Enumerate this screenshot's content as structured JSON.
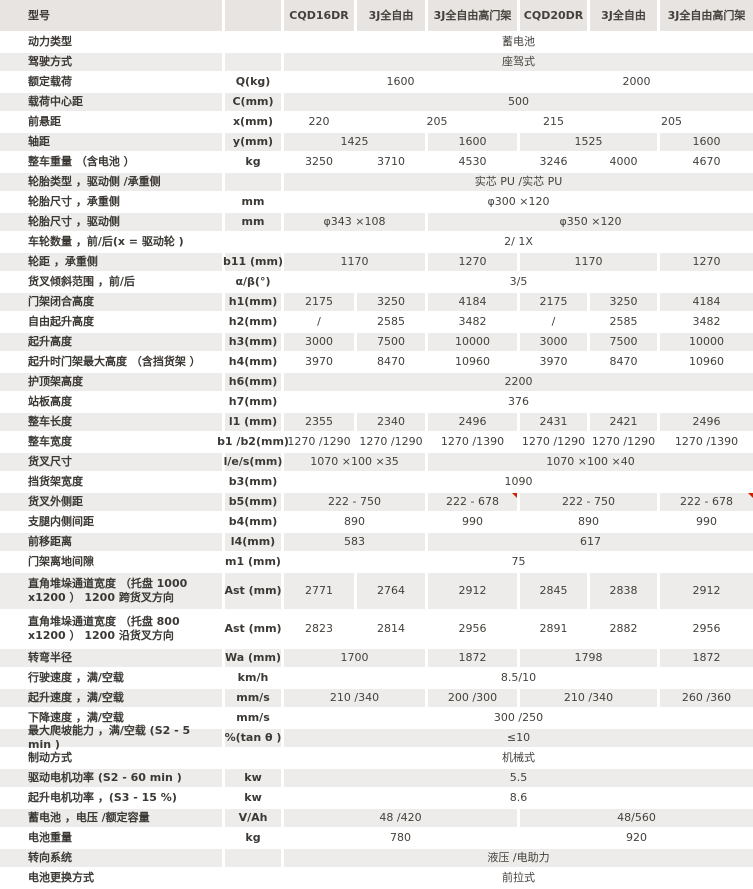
{
  "table": {
    "header": {
      "label": "型号",
      "unit": "",
      "models": [
        "CQD16DR",
        "3J全自由",
        "3J全自由高门架",
        "CQD20DR",
        "3J全自由",
        "3J全自由高门架"
      ]
    },
    "rows": [
      {
        "label": "动力类型",
        "unit": "",
        "cells": [
          {
            "span": 6,
            "text": "蓄电池"
          }
        ]
      },
      {
        "label": "驾驶方式",
        "unit": "",
        "cells": [
          {
            "span": 6,
            "text": "座驾式"
          }
        ]
      },
      {
        "label": "额定载荷",
        "unit": "Q(kg)",
        "cells": [
          {
            "span": 3,
            "text": "1600"
          },
          {
            "span": 3,
            "text": "2000"
          }
        ]
      },
      {
        "label": "载荷中心距",
        "unit": "C(mm)",
        "cells": [
          {
            "span": 6,
            "text": "500"
          }
        ]
      },
      {
        "label": "前悬距",
        "unit": "x(mm)",
        "cells": [
          {
            "span": 1,
            "text": "220"
          },
          {
            "span": 2,
            "text": "205"
          },
          {
            "span": 1,
            "text": "215"
          },
          {
            "span": 2,
            "text": "205"
          }
        ]
      },
      {
        "label": "轴距",
        "unit": "y(mm)",
        "cells": [
          {
            "span": 2,
            "text": "1425"
          },
          {
            "span": 1,
            "text": "1600"
          },
          {
            "span": 2,
            "text": "1525"
          },
          {
            "span": 1,
            "text": "1600"
          }
        ]
      },
      {
        "label": "整车重量 （含电池 ）",
        "unit": "kg",
        "cells": [
          {
            "span": 1,
            "text": "3250"
          },
          {
            "span": 1,
            "text": "3710"
          },
          {
            "span": 1,
            "text": "4530"
          },
          {
            "span": 1,
            "text": "3246"
          },
          {
            "span": 1,
            "text": "4000"
          },
          {
            "span": 1,
            "text": "4670"
          }
        ]
      },
      {
        "label": "轮胎类型 ，驱动侧 /承重侧",
        "unit": "",
        "cells": [
          {
            "span": 6,
            "text": "实芯 PU /实芯 PU"
          }
        ]
      },
      {
        "label": "轮胎尺寸 ，承重侧",
        "unit": "mm",
        "cells": [
          {
            "span": 6,
            "text": "φ300 ×120"
          }
        ]
      },
      {
        "label": "轮胎尺寸 ，驱动侧",
        "unit": "mm",
        "cells": [
          {
            "span": 2,
            "text": "φ343 ×108"
          },
          {
            "span": 4,
            "text": "φ350 ×120"
          }
        ]
      },
      {
        "label": "车轮数量 ，前/后(x = 驱动轮 )",
        "unit": "",
        "cells": [
          {
            "span": 6,
            "text": "2/ 1X"
          }
        ]
      },
      {
        "label": "轮距 ，承重侧",
        "unit": "b11 (mm)",
        "cells": [
          {
            "span": 2,
            "text": "1170"
          },
          {
            "span": 1,
            "text": "1270"
          },
          {
            "span": 2,
            "text": "1170"
          },
          {
            "span": 1,
            "text": "1270"
          }
        ]
      },
      {
        "label": "货叉倾斜范围 ，前/后",
        "unit": "α/β(°)",
        "cells": [
          {
            "span": 6,
            "text": "3/5"
          }
        ]
      },
      {
        "label": "门架闭合高度",
        "unit": "h1(mm)",
        "cells": [
          {
            "span": 1,
            "text": "2175"
          },
          {
            "span": 1,
            "text": "3250"
          },
          {
            "span": 1,
            "text": "4184"
          },
          {
            "span": 1,
            "text": "2175"
          },
          {
            "span": 1,
            "text": "3250"
          },
          {
            "span": 1,
            "text": "4184"
          }
        ]
      },
      {
        "label": "自由起升高度",
        "unit": "h2(mm)",
        "cells": [
          {
            "span": 1,
            "text": "/"
          },
          {
            "span": 1,
            "text": "2585"
          },
          {
            "span": 1,
            "text": "3482"
          },
          {
            "span": 1,
            "text": "/"
          },
          {
            "span": 1,
            "text": "2585"
          },
          {
            "span": 1,
            "text": "3482"
          }
        ]
      },
      {
        "label": "起升高度",
        "unit": "h3(mm)",
        "cells": [
          {
            "span": 1,
            "text": "3000"
          },
          {
            "span": 1,
            "text": "7500"
          },
          {
            "span": 1,
            "text": "10000"
          },
          {
            "span": 1,
            "text": "3000"
          },
          {
            "span": 1,
            "text": "7500"
          },
          {
            "span": 1,
            "text": "10000"
          }
        ]
      },
      {
        "label": "起升时门架最大高度 （含挡货架 ）",
        "unit": "h4(mm)",
        "cells": [
          {
            "span": 1,
            "text": "3970"
          },
          {
            "span": 1,
            "text": "8470"
          },
          {
            "span": 1,
            "text": "10960"
          },
          {
            "span": 1,
            "text": "3970"
          },
          {
            "span": 1,
            "text": "8470"
          },
          {
            "span": 1,
            "text": "10960"
          }
        ]
      },
      {
        "label": "护顶架高度",
        "unit": "h6(mm)",
        "cells": [
          {
            "span": 6,
            "text": "2200"
          }
        ]
      },
      {
        "label": "站板高度",
        "unit": "h7(mm)",
        "cells": [
          {
            "span": 6,
            "text": "376"
          }
        ]
      },
      {
        "label": "整车长度",
        "unit": "l1 (mm)",
        "cells": [
          {
            "span": 1,
            "text": "2355"
          },
          {
            "span": 1,
            "text": "2340"
          },
          {
            "span": 1,
            "text": "2496"
          },
          {
            "span": 1,
            "text": "2431"
          },
          {
            "span": 1,
            "text": "2421"
          },
          {
            "span": 1,
            "text": "2496"
          }
        ]
      },
      {
        "label": "整车宽度",
        "unit": "b1 /b2(mm)",
        "cells": [
          {
            "span": 1,
            "text": "1270 /1290"
          },
          {
            "span": 1,
            "text": "1270 /1290"
          },
          {
            "span": 1,
            "text": "1270 /1390"
          },
          {
            "span": 1,
            "text": "1270 /1290"
          },
          {
            "span": 1,
            "text": "1270 /1290"
          },
          {
            "span": 1,
            "text": "1270 /1390"
          }
        ]
      },
      {
        "label": "货叉尺寸",
        "unit": "l/e/s(mm)",
        "cells": [
          {
            "span": 2,
            "text": "1070 ×100 ×35"
          },
          {
            "span": 4,
            "text": "1070 ×100 ×40"
          }
        ]
      },
      {
        "label": "挡货架宽度",
        "unit": "b3(mm)",
        "cells": [
          {
            "span": 6,
            "text": "1090"
          }
        ]
      },
      {
        "label": "货叉外侧距",
        "unit": "b5(mm)",
        "cells": [
          {
            "span": 2,
            "text": "222 - 750"
          },
          {
            "span": 1,
            "text": "222 - 678",
            "marker": true
          },
          {
            "span": 2,
            "text": "222 - 750"
          },
          {
            "span": 1,
            "text": "222 - 678",
            "marker": true
          }
        ]
      },
      {
        "label": "支腿内侧间距",
        "unit": "b4(mm)",
        "cells": [
          {
            "span": 2,
            "text": "890"
          },
          {
            "span": 1,
            "text": "990"
          },
          {
            "span": 2,
            "text": "890"
          },
          {
            "span": 1,
            "text": "990"
          }
        ]
      },
      {
        "label": "前移距离",
        "unit": "l4(mm)",
        "cells": [
          {
            "span": 2,
            "text": "583"
          },
          {
            "span": 4,
            "text": "617"
          }
        ]
      },
      {
        "label": "门架离地间隙",
        "unit": "m1 (mm)",
        "cells": [
          {
            "span": 6,
            "text": "75"
          }
        ]
      },
      {
        "label": "直角堆垛通道宽度 （托盘 1000 x1200 ） 1200 跨货叉方向",
        "unit": "Ast (mm)",
        "tall": true,
        "cells": [
          {
            "span": 1,
            "text": "2771"
          },
          {
            "span": 1,
            "text": "2764"
          },
          {
            "span": 1,
            "text": "2912"
          },
          {
            "span": 1,
            "text": "2845"
          },
          {
            "span": 1,
            "text": "2838"
          },
          {
            "span": 1,
            "text": "2912"
          }
        ]
      },
      {
        "label": "直角堆垛通道宽度 （托盘 800 x1200 ） 1200 沿货叉方向",
        "unit": "Ast (mm)",
        "tall": true,
        "cells": [
          {
            "span": 1,
            "text": "2823"
          },
          {
            "span": 1,
            "text": "2814"
          },
          {
            "span": 1,
            "text": "2956"
          },
          {
            "span": 1,
            "text": "2891"
          },
          {
            "span": 1,
            "text": "2882"
          },
          {
            "span": 1,
            "text": "2956"
          }
        ]
      },
      {
        "label": "转弯半径",
        "unit": "Wa (mm)",
        "cells": [
          {
            "span": 2,
            "text": "1700"
          },
          {
            "span": 1,
            "text": "1872"
          },
          {
            "span": 2,
            "text": "1798"
          },
          {
            "span": 1,
            "text": "1872"
          }
        ]
      },
      {
        "label": "行驶速度 ，满/空载",
        "unit": "km/h",
        "cells": [
          {
            "span": 6,
            "text": "8.5/10"
          }
        ]
      },
      {
        "label": "起升速度 ，满/空载",
        "unit": "mm/s",
        "cells": [
          {
            "span": 2,
            "text": "210 /340"
          },
          {
            "span": 1,
            "text": "200 /300"
          },
          {
            "span": 2,
            "text": "210 /340"
          },
          {
            "span": 1,
            "text": "260 /360"
          }
        ]
      },
      {
        "label": "下降速度 ，满/空载",
        "unit": "mm/s",
        "cells": [
          {
            "span": 6,
            "text": "300 /250"
          }
        ]
      },
      {
        "label": "最大爬坡能力 ，满/空载 (S2 - 5 min )",
        "unit": "%(tan θ )",
        "cells": [
          {
            "span": 6,
            "text": "≤10"
          }
        ]
      },
      {
        "label": "制动方式",
        "unit": "",
        "cells": [
          {
            "span": 6,
            "text": "机械式"
          }
        ]
      },
      {
        "label": "驱动电机功率 (S2 - 60 min )",
        "unit": "kw",
        "cells": [
          {
            "span": 6,
            "text": "5.5"
          }
        ]
      },
      {
        "label": "起升电机功率 ，(S3 - 15 %)",
        "unit": "kw",
        "cells": [
          {
            "span": 6,
            "text": "8.6"
          }
        ]
      },
      {
        "label": "蓄电池 ，电压 /额定容量",
        "unit": "V/Ah",
        "cells": [
          {
            "span": 3,
            "text": "48 /420"
          },
          {
            "span": 3,
            "text": "48/560"
          }
        ]
      },
      {
        "label": "电池重量",
        "unit": "kg",
        "cells": [
          {
            "span": 3,
            "text": "780"
          },
          {
            "span": 3,
            "text": "920"
          }
        ]
      },
      {
        "label": "转向系统",
        "unit": "",
        "cells": [
          {
            "span": 6,
            "text": "液压 /电助力"
          }
        ]
      },
      {
        "label": "电池更换方式",
        "unit": "",
        "cells": [
          {
            "span": 6,
            "text": "前拉式"
          }
        ]
      }
    ],
    "marker_color": "#cc2200"
  }
}
